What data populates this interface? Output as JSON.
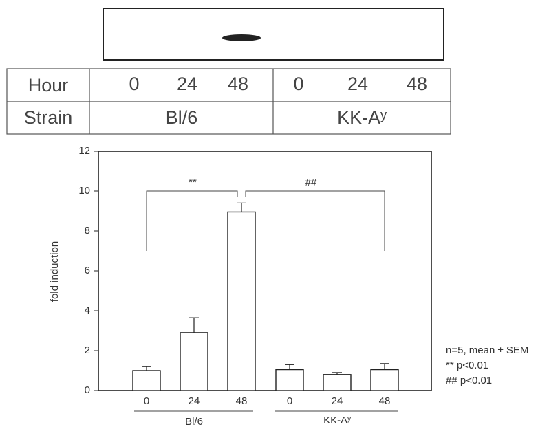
{
  "table": {
    "rows": [
      [
        "Hour",
        "0",
        "24",
        "48",
        "0",
        "24",
        "48"
      ],
      [
        "Strain",
        "Bl/6",
        "KK-Aʸ"
      ]
    ]
  },
  "chart_data": {
    "type": "bar",
    "ylabel": "fold induction",
    "categories": [
      "0",
      "24",
      "48",
      "0",
      "24",
      "48"
    ],
    "groups": [
      "Bl/6",
      "KK-Aʸ"
    ],
    "series": [
      {
        "values": [
          1.0,
          2.9,
          8.95,
          1.05,
          0.8,
          1.05
        ],
        "errors": [
          0.2,
          0.75,
          0.45,
          0.25,
          0.1,
          0.3
        ],
        "color": "#ffffff"
      }
    ],
    "ylim": [
      0,
      12
    ],
    "yticks": [
      0,
      2,
      4,
      6,
      8,
      10,
      12
    ],
    "annotations": [
      "**",
      "##"
    ],
    "notes": [
      "n=5, mean ± SEM",
      "** p<0.01",
      "## p<0.01"
    ]
  }
}
